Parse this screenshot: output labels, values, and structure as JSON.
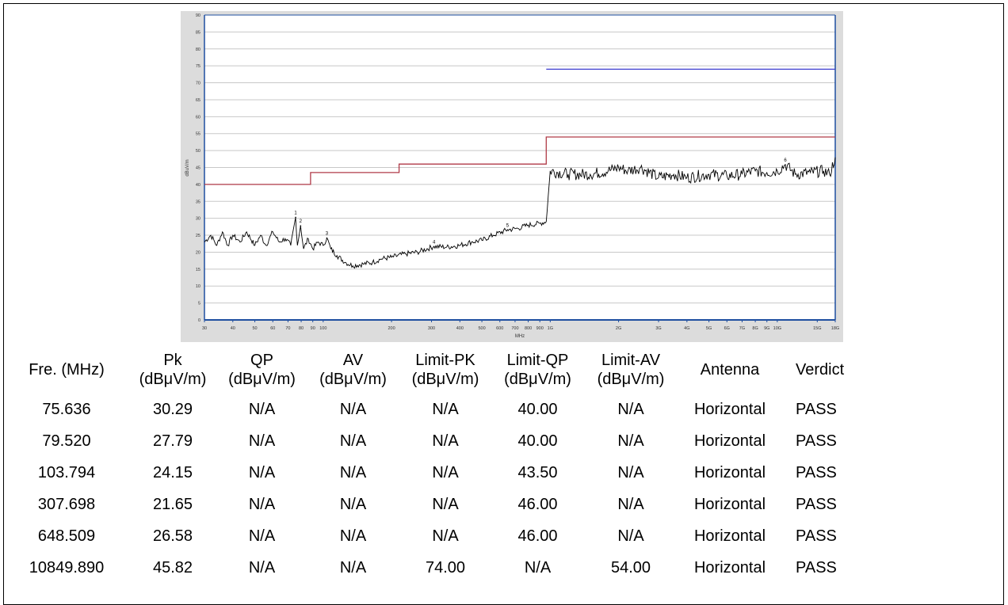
{
  "chart_data": {
    "type": "line",
    "ylabel": "dBuV/m",
    "xlabel": "MHz",
    "x_scale": "log",
    "xlim": [
      30,
      18000
    ],
    "ylim": [
      0,
      90
    ],
    "yticks": [
      0,
      5,
      10,
      15,
      20,
      25,
      30,
      35,
      40,
      45,
      50,
      55,
      60,
      65,
      70,
      75,
      80,
      85,
      90
    ],
    "xticks": [
      {
        "v": 30,
        "label": "30"
      },
      {
        "v": 40,
        "label": "40"
      },
      {
        "v": 50,
        "label": "50"
      },
      {
        "v": 60,
        "label": "60"
      },
      {
        "v": 70,
        "label": "70"
      },
      {
        "v": 80,
        "label": "80"
      },
      {
        "v": 90,
        "label": "90"
      },
      {
        "v": 100,
        "label": "100"
      },
      {
        "v": 200,
        "label": "200"
      },
      {
        "v": 300,
        "label": "300"
      },
      {
        "v": 400,
        "label": "400"
      },
      {
        "v": 500,
        "label": "500"
      },
      {
        "v": 600,
        "label": "600"
      },
      {
        "v": 700,
        "label": "700"
      },
      {
        "v": 800,
        "label": "800"
      },
      {
        "v": 900,
        "label": "900"
      },
      {
        "v": 1000,
        "label": "1G"
      },
      {
        "v": 2000,
        "label": "2G"
      },
      {
        "v": 3000,
        "label": "3G"
      },
      {
        "v": 4000,
        "label": "4G"
      },
      {
        "v": 5000,
        "label": "5G"
      },
      {
        "v": 6000,
        "label": "6G"
      },
      {
        "v": 7000,
        "label": "7G"
      },
      {
        "v": 8000,
        "label": "8G"
      },
      {
        "v": 9000,
        "label": "9G"
      },
      {
        "v": 10000,
        "label": "10G"
      },
      {
        "v": 15000,
        "label": "15G"
      },
      {
        "v": 18000,
        "label": "18G"
      }
    ],
    "grid": true,
    "colors": {
      "limit_low": "#b03a48",
      "limit_high": "#3c3ccf",
      "trace": "#000000",
      "axis": "#1f4fa0"
    },
    "series": [
      {
        "role": "limit",
        "color": "#b03a48",
        "x": [
          30,
          88,
          88,
          216,
          216,
          960,
          960,
          18000
        ],
        "y": [
          40,
          40,
          43.5,
          43.5,
          46,
          46,
          54,
          54
        ]
      },
      {
        "role": "limit",
        "color": "#3c3ccf",
        "x": [
          960,
          18000
        ],
        "y": [
          74,
          74
        ]
      },
      {
        "role": "measurement",
        "color": "#000000",
        "x": [
          30,
          32,
          34,
          36,
          38,
          40,
          43,
          46,
          50,
          53,
          56,
          60,
          64,
          68,
          72,
          75.6,
          77,
          79.5,
          82,
          86,
          90,
          95,
          100,
          103.8,
          108,
          115,
          125,
          135,
          150,
          165,
          180,
          200,
          230,
          260,
          307.7,
          350,
          400,
          450,
          500,
          560,
          648.5,
          720,
          800,
          900,
          960,
          1000,
          1200,
          1500,
          1800,
          2000,
          2200,
          2500,
          3000,
          3500,
          4000,
          5000,
          6000,
          7000,
          8000,
          9000,
          10000,
          10849.9,
          12000,
          14000,
          16000,
          17000,
          18000
        ],
        "y": [
          23,
          25,
          22,
          26,
          22,
          25,
          23,
          26,
          22,
          25,
          22,
          26,
          23,
          24,
          22,
          30.3,
          22,
          27.8,
          21,
          24,
          21,
          23,
          22,
          24.2,
          21,
          19,
          17,
          16,
          16.5,
          17,
          18,
          18.5,
          19.5,
          20,
          21.7,
          21.5,
          22,
          23,
          23.5,
          25,
          26.6,
          27,
          28,
          28.5,
          29,
          44,
          43,
          43,
          44,
          45,
          44,
          45,
          42,
          43,
          42,
          43,
          42.5,
          43,
          44,
          43.5,
          44,
          45.8,
          43,
          43.5,
          44,
          43,
          48
        ]
      }
    ],
    "markers": [
      {
        "label": "1",
        "x": 75.636,
        "y": 30.29
      },
      {
        "label": "2",
        "x": 79.52,
        "y": 27.79
      },
      {
        "label": "3",
        "x": 103.794,
        "y": 24.15
      },
      {
        "label": "4",
        "x": 307.698,
        "y": 21.65
      },
      {
        "label": "5",
        "x": 648.509,
        "y": 26.58
      },
      {
        "label": "6",
        "x": 10849.89,
        "y": 45.82
      }
    ]
  },
  "table": {
    "headers": [
      [
        "Fre. (MHz)"
      ],
      [
        "Pk",
        "(dBμV/m)"
      ],
      [
        "QP",
        "(dBμV/m)"
      ],
      [
        "AV",
        "(dBμV/m)"
      ],
      [
        "Limit-PK",
        "(dBμV/m)"
      ],
      [
        "Limit-QP",
        "(dBμV/m)"
      ],
      [
        "Limit-AV",
        "(dBμV/m)"
      ],
      [
        "Antenna"
      ],
      [
        "Verdict"
      ]
    ],
    "rows": [
      [
        "75.636",
        "30.29",
        "N/A",
        "N/A",
        "N/A",
        "40.00",
        "N/A",
        "Horizontal",
        "PASS"
      ],
      [
        "79.520",
        "27.79",
        "N/A",
        "N/A",
        "N/A",
        "40.00",
        "N/A",
        "Horizontal",
        "PASS"
      ],
      [
        "103.794",
        "24.15",
        "N/A",
        "N/A",
        "N/A",
        "43.50",
        "N/A",
        "Horizontal",
        "PASS"
      ],
      [
        "307.698",
        "21.65",
        "N/A",
        "N/A",
        "N/A",
        "46.00",
        "N/A",
        "Horizontal",
        "PASS"
      ],
      [
        "648.509",
        "26.58",
        "N/A",
        "N/A",
        "N/A",
        "46.00",
        "N/A",
        "Horizontal",
        "PASS"
      ],
      [
        "10849.890",
        "45.82",
        "N/A",
        "N/A",
        "74.00",
        "N/A",
        "54.00",
        "Horizontal",
        "PASS"
      ]
    ]
  }
}
